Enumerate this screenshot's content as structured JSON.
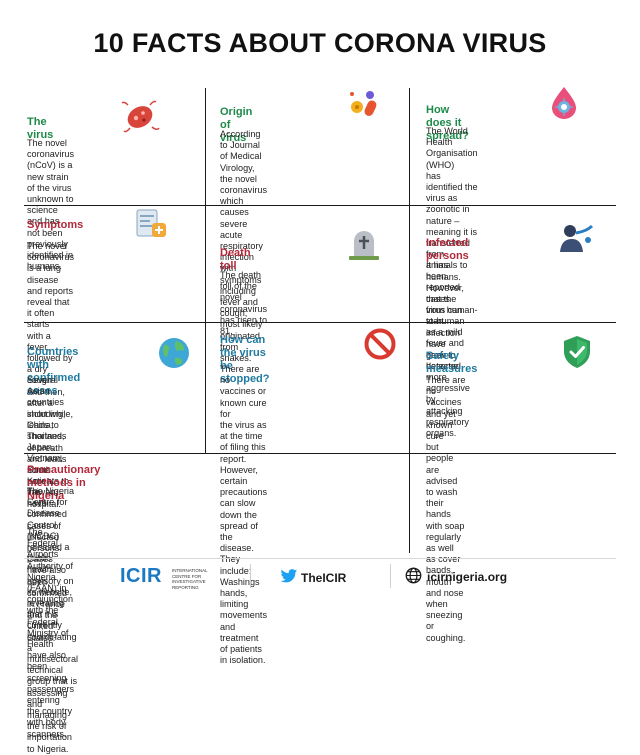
{
  "title": "10 FACTS ABOUT CORONA VIRUS",
  "colors": {
    "green": "#1e8a4a",
    "blue": "#1f7aa0",
    "red": "#b3283a",
    "gray": "#555555",
    "brand": "#1b78c2"
  },
  "cards": {
    "the_virus": {
      "heading": "The virus",
      "icon": "virus-icon",
      "lines": [
        "The novel coronavirus (nCoV) is a",
        "new strain of the virus unknown to",
        "science and has not been previously",
        "identified in humans."
      ]
    },
    "origin": {
      "heading": "Origin of virus",
      "icon": "bacteria-icon",
      "lines": [
        "According to Journal of Medical",
        "Virology, the novel coronavirus which",
        "causes severe acute respiratory",
        "infection with symptoms including",
        "fever and cough, most likely originated",
        "from snakes."
      ]
    },
    "spread": {
      "heading": "How does it spread?",
      "icon": "droplet-virus-icon",
      "lines": [
        "The World Health Organisation (WHO)",
        "has identified the virus as zoonotic in",
        "nature – meaning it is transferred from",
        "animals to humans. However, cases",
        "from human-to-human infection have",
        "been detected."
      ]
    },
    "symptoms": {
      "heading": "Symptoms",
      "icon": "medical-report-icon",
      "lines": [
        "The novel coronavirus is a lung disease",
        "and reports reveal that it often starts",
        "with a fever, followed by a dry cough",
        "and then, after a short while, leads to",
        "shortness of breath and leads some",
        "patients to the hospital."
      ]
    },
    "death_toll": {
      "heading": "Death toll",
      "icon": "tombstone-icon",
      "lines": [
        "The death toll of the novel coronavirus",
        "has risen to 81."
      ]
    },
    "infected": {
      "heading": "Infected persons",
      "icon": "sick-person-icon",
      "lines": [
        "It has been reported that the virus can start",
        "as a mild fever and grow to become more",
        "aggressive by attacking respiratory organs."
      ]
    },
    "countries": {
      "heading_lines": [
        "Countries with",
        "confirmed cases"
      ],
      "icon": "globe-icon",
      "lines": [
        "Several Asian countries including; China,",
        "Thailand, Japan, Vietnam, South Korea,",
        "Taiwan have confirmed cases of",
        "infected persons. Cases have also",
        "been confirmed in France and the",
        "United States."
      ]
    },
    "stopped": {
      "heading_lines": [
        "How can the virus",
        "be stopped?"
      ],
      "icon": "prohibited-icon",
      "lines": [
        "There are no vaccines or known cure for",
        "the virus as at the time of filing this report.",
        "However, certain precautions can slow",
        "down the spread of the disease.",
        "They include: Washings hands, limiting",
        "movements and treatment of patients",
        "in isolation."
      ]
    },
    "safety": {
      "heading": "Safety measures",
      "icon": "shield-check-icon",
      "lines": [
        "There are no vaccines and yet known cure",
        "but people are advised to wash their hands",
        "with soap regularly as well as cover hands,",
        "mouth and nose when sneezing or coughing."
      ]
    },
    "precaution": {
      "heading": "Precautionary methods in Nigeria",
      "para1": [
        "The Nigeria Centre for Disease Control (NCDC) released a public health advisory on its website,",
        "revealing that it is currently coordinating a multisectoral technical group that is assessing and",
        "managing the risk of importation to Nigeria."
      ],
      "para2": [
        "The Federal Airports Authority of Nigeria (FAAN) in conjunction with the Federal Ministry of",
        "Health have also been screening passengers entering the country with body scanners."
      ]
    }
  },
  "footer": {
    "logo": "ICIR",
    "logo_sub": [
      "INTERNATIONAL",
      "CENTRE FOR",
      "INVESTIGATIVE",
      "REPORTING"
    ],
    "twitter_icon": "twitter-icon",
    "twitter": "TheICIR",
    "web_icon": "globe-web-icon",
    "website": "icirnigeria.org"
  }
}
